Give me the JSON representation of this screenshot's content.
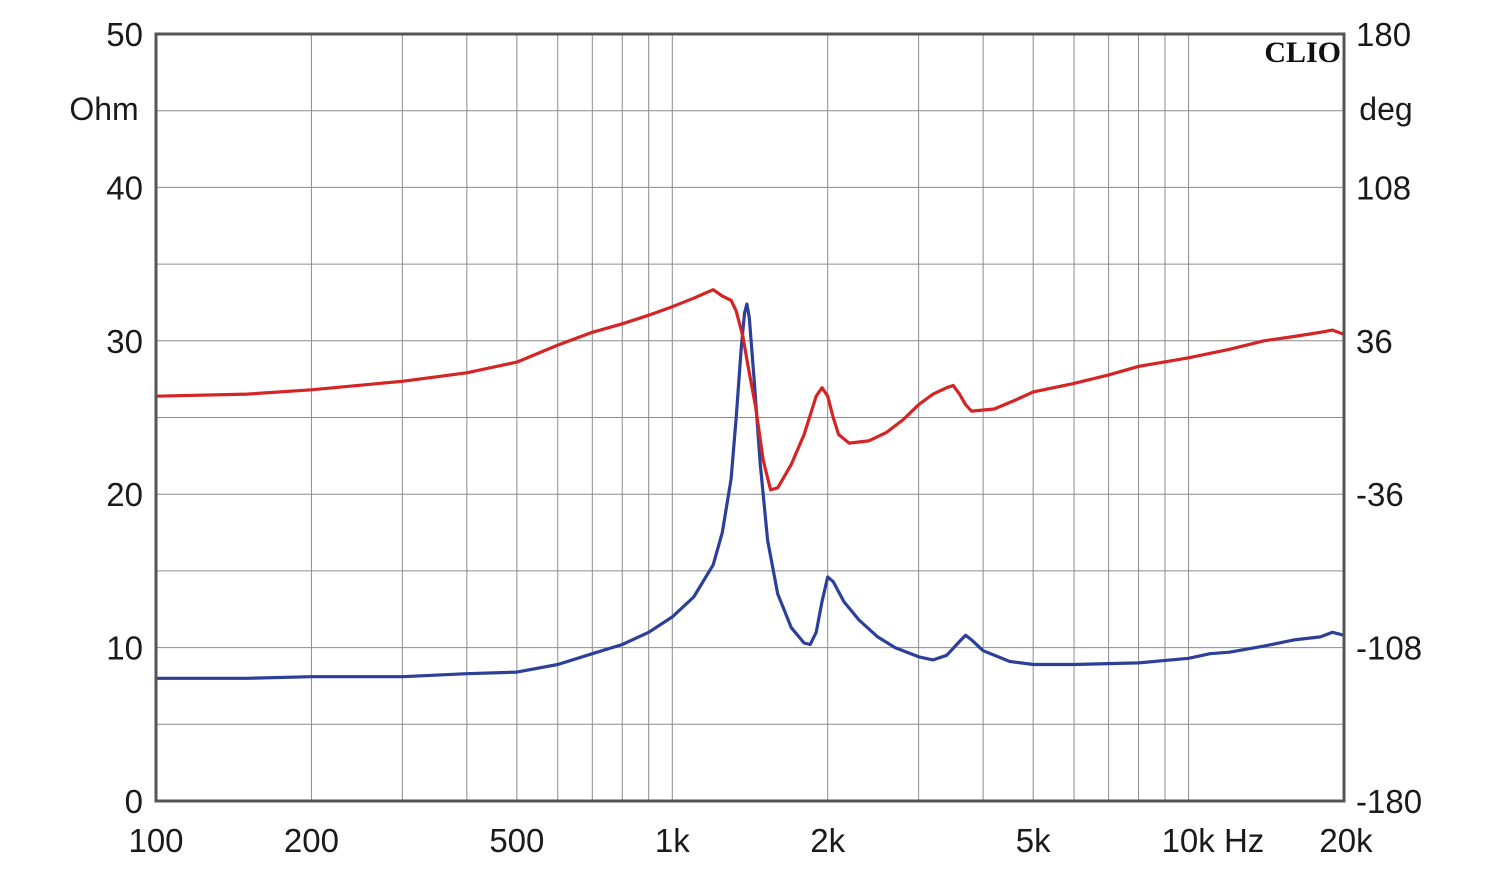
{
  "chart_data": {
    "type": "line",
    "brand": "CLIO",
    "x_scale": "log",
    "xlim": [
      100,
      20000
    ],
    "x_ticks": [
      100,
      200,
      500,
      1000,
      2000,
      5000,
      10000,
      20000
    ],
    "x_tick_labels": [
      "100",
      "200",
      "500",
      "1k",
      "2k",
      "5k",
      "10k Hz",
      "20k"
    ],
    "ylim_left": [
      0,
      50
    ],
    "y_ticks_left": [
      0,
      10,
      20,
      30,
      40,
      50
    ],
    "y_tick_labels_left": [
      "0",
      "10",
      "20",
      "30",
      "40",
      "50"
    ],
    "ylabel_left": "Ohm",
    "ylim_right": [
      -180,
      180
    ],
    "y_ticks_right": [
      -180,
      -108,
      -36,
      36,
      108,
      180
    ],
    "y_tick_labels_right": [
      "-180",
      "-108",
      "-36",
      "36",
      "108",
      "180"
    ],
    "ylabel_right": "deg",
    "grid": true,
    "series": [
      {
        "color": "#2c3f99",
        "axis": "left",
        "points": [
          [
            100,
            8.0
          ],
          [
            150,
            8.0
          ],
          [
            200,
            8.1
          ],
          [
            300,
            8.1
          ],
          [
            400,
            8.3
          ],
          [
            500,
            8.4
          ],
          [
            600,
            8.9
          ],
          [
            700,
            9.6
          ],
          [
            800,
            10.2
          ],
          [
            900,
            11.0
          ],
          [
            1000,
            12.0
          ],
          [
            1100,
            13.3
          ],
          [
            1200,
            15.4
          ],
          [
            1250,
            17.5
          ],
          [
            1300,
            21.0
          ],
          [
            1330,
            25.0
          ],
          [
            1360,
            29.5
          ],
          [
            1380,
            31.8
          ],
          [
            1395,
            32.4
          ],
          [
            1410,
            31.5
          ],
          [
            1440,
            27.5
          ],
          [
            1480,
            22.0
          ],
          [
            1530,
            17.0
          ],
          [
            1600,
            13.5
          ],
          [
            1700,
            11.3
          ],
          [
            1800,
            10.3
          ],
          [
            1850,
            10.2
          ],
          [
            1900,
            11.0
          ],
          [
            1950,
            13.0
          ],
          [
            2000,
            14.6
          ],
          [
            2050,
            14.3
          ],
          [
            2150,
            13.0
          ],
          [
            2300,
            11.8
          ],
          [
            2500,
            10.7
          ],
          [
            2700,
            10.0
          ],
          [
            3000,
            9.4
          ],
          [
            3200,
            9.2
          ],
          [
            3400,
            9.5
          ],
          [
            3600,
            10.4
          ],
          [
            3700,
            10.8
          ],
          [
            3800,
            10.5
          ],
          [
            4000,
            9.8
          ],
          [
            4500,
            9.1
          ],
          [
            5000,
            8.9
          ],
          [
            6000,
            8.9
          ],
          [
            8000,
            9.0
          ],
          [
            10000,
            9.3
          ],
          [
            11000,
            9.6
          ],
          [
            12000,
            9.7
          ],
          [
            14000,
            10.1
          ],
          [
            16000,
            10.5
          ],
          [
            18000,
            10.7
          ],
          [
            19000,
            11.0
          ],
          [
            20000,
            10.8
          ]
        ]
      },
      {
        "color": "#d42424",
        "axis": "right",
        "points": [
          [
            100,
            10
          ],
          [
            150,
            11
          ],
          [
            200,
            13
          ],
          [
            300,
            17
          ],
          [
            400,
            21
          ],
          [
            500,
            26
          ],
          [
            600,
            34
          ],
          [
            700,
            40
          ],
          [
            800,
            44
          ],
          [
            900,
            48
          ],
          [
            1000,
            52
          ],
          [
            1100,
            56
          ],
          [
            1150,
            58
          ],
          [
            1200,
            60
          ],
          [
            1250,
            57
          ],
          [
            1300,
            55
          ],
          [
            1330,
            50
          ],
          [
            1370,
            38
          ],
          [
            1400,
            25
          ],
          [
            1450,
            5
          ],
          [
            1500,
            -20
          ],
          [
            1550,
            -34
          ],
          [
            1600,
            -33
          ],
          [
            1700,
            -22
          ],
          [
            1800,
            -8
          ],
          [
            1900,
            10
          ],
          [
            1950,
            14
          ],
          [
            2000,
            10
          ],
          [
            2050,
            0
          ],
          [
            2100,
            -8
          ],
          [
            2200,
            -12
          ],
          [
            2400,
            -11
          ],
          [
            2600,
            -7
          ],
          [
            2800,
            -1
          ],
          [
            3000,
            6
          ],
          [
            3200,
            11
          ],
          [
            3400,
            14
          ],
          [
            3500,
            15
          ],
          [
            3600,
            11
          ],
          [
            3700,
            6
          ],
          [
            3800,
            3
          ],
          [
            4200,
            4
          ],
          [
            4600,
            8
          ],
          [
            5000,
            12
          ],
          [
            6000,
            16
          ],
          [
            7000,
            20
          ],
          [
            8000,
            24
          ],
          [
            10000,
            28
          ],
          [
            12000,
            32
          ],
          [
            14000,
            36
          ],
          [
            16000,
            38
          ],
          [
            18000,
            40
          ],
          [
            19000,
            41
          ],
          [
            20000,
            39
          ]
        ]
      }
    ]
  }
}
